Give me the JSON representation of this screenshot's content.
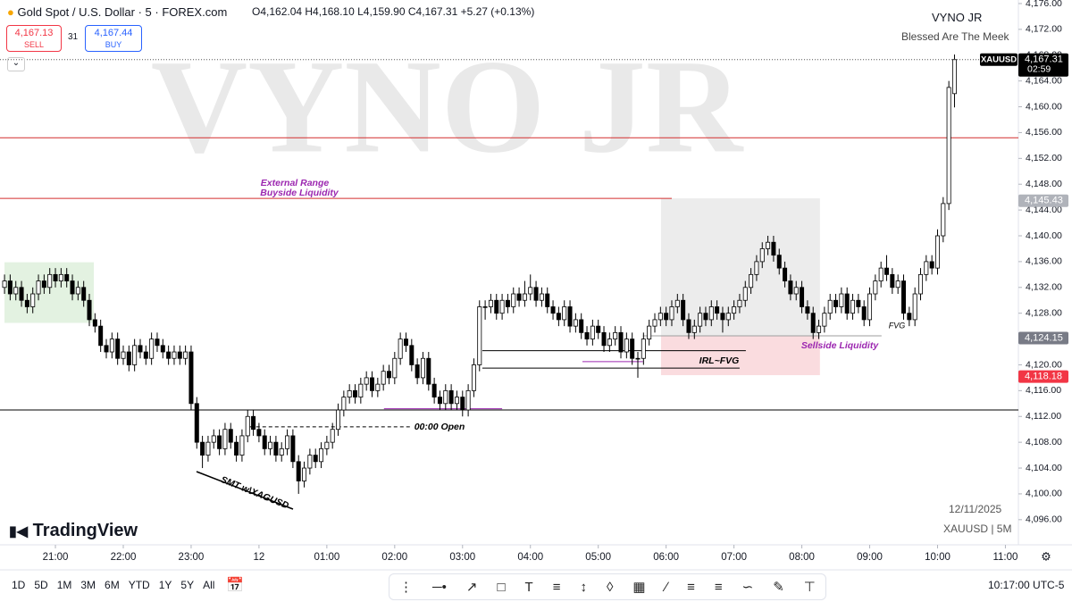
{
  "header": {
    "symbol": "Gold Spot / U.S. Dollar · 5 · FOREX.com",
    "ohlc": [
      "O4,162.04",
      "H4,168.10",
      "L4,159.90",
      "C4,167.31"
    ],
    "change": "+5.27 (+0.13%)",
    "sell": {
      "price": "4,167.13",
      "label": "SELL"
    },
    "spread": "31",
    "buy": {
      "price": "4,167.44",
      "label": "BUY"
    }
  },
  "watermark": "VYNO JR",
  "author": "VYNO JR",
  "tagline": "Blessed Are The Meek",
  "logo": "TradingView",
  "date": "12/11/2025",
  "symbol_info": "XAUUSD | 5M",
  "toolbar": {
    "ranges": [
      "1D",
      "5D",
      "1M",
      "3M",
      "6M",
      "YTD",
      "1Y",
      "5Y",
      "All"
    ],
    "clock": "10:17:00 UTC-5"
  },
  "chart_data": {
    "type": "candlestick",
    "up_color": "#ffffff",
    "down_color": "#000000",
    "xlim": [
      -0.8,
      179.3
    ],
    "ylim": [
      4092.1,
      4176.55
    ],
    "xticks": [
      {
        "value": 9,
        "label": "21:00"
      },
      {
        "value": 21,
        "label": "22:00"
      },
      {
        "value": 33,
        "label": "23:00"
      },
      {
        "value": 45,
        "label": "12"
      },
      {
        "value": 57,
        "label": "01:00"
      },
      {
        "value": 69,
        "label": "02:00"
      },
      {
        "value": 81,
        "label": "03:00"
      },
      {
        "value": 93,
        "label": "04:00"
      },
      {
        "value": 105,
        "label": "05:00"
      },
      {
        "value": 117,
        "label": "06:00"
      },
      {
        "value": 129,
        "label": "07:00"
      },
      {
        "value": 141,
        "label": "08:00"
      },
      {
        "value": 153,
        "label": "09:00"
      },
      {
        "value": 165,
        "label": "10:00"
      },
      {
        "value": 177,
        "label": "11:00"
      }
    ],
    "yticks": [
      {
        "value": 4096,
        "label": "4,096.00"
      },
      {
        "value": 4100,
        "label": "4,100.00"
      },
      {
        "value": 4104,
        "label": "4,104.00"
      },
      {
        "value": 4108,
        "label": "4,108.00"
      },
      {
        "value": 4112,
        "label": "4,112.00"
      },
      {
        "value": 4116,
        "label": "4,116.00"
      },
      {
        "value": 4120,
        "label": "4,120.00"
      },
      {
        "value": 4124,
        "label": "4,124.00"
      },
      {
        "value": 4128,
        "label": "4,128.00"
      },
      {
        "value": 4132,
        "label": "4,132.00"
      },
      {
        "value": 4136,
        "label": "4,136.00"
      },
      {
        "value": 4140,
        "label": "4,140.00"
      },
      {
        "value": 4144,
        "label": "4,144.00"
      },
      {
        "value": 4148,
        "label": "4,148.00"
      },
      {
        "value": 4152,
        "label": "4,152.00"
      },
      {
        "value": 4156,
        "label": "4,156.00"
      },
      {
        "value": 4160,
        "label": "4,160.00"
      },
      {
        "value": 4164,
        "label": "4,164.00"
      },
      {
        "value": 4168,
        "label": "4,168.00"
      },
      {
        "value": 4172,
        "label": "4,172.00"
      },
      {
        "value": 4176,
        "label": "4,176.00"
      }
    ],
    "candles": [
      [
        4132,
        4134,
        4131,
        4133
      ],
      [
        4133,
        4134,
        4130,
        4131
      ],
      [
        4131,
        4133,
        4130,
        4132
      ],
      [
        4132,
        4133,
        4129,
        4130
      ],
      [
        4130,
        4131,
        4128,
        4129
      ],
      [
        4129,
        4132,
        4128,
        4131
      ],
      [
        4131,
        4134,
        4130,
        4133
      ],
      [
        4133,
        4134,
        4131,
        4132
      ],
      [
        4132,
        4135,
        4131,
        4134
      ],
      [
        4134,
        4135,
        4132,
        4133
      ],
      [
        4133,
        4135,
        4132,
        4134
      ],
      [
        4134,
        4135,
        4132,
        4133
      ],
      [
        4133,
        4134,
        4130,
        4131
      ],
      [
        4131,
        4133,
        4130,
        4132
      ],
      [
        4132,
        4133,
        4129,
        4130
      ],
      [
        4130,
        4131,
        4126,
        4127
      ],
      [
        4127,
        4128,
        4125,
        4126
      ],
      [
        4126,
        4127,
        4122,
        4123
      ],
      [
        4123,
        4124,
        4121,
        4122
      ],
      [
        4122,
        4125,
        4121,
        4124
      ],
      [
        4124,
        4125,
        4120,
        4121
      ],
      [
        4121,
        4123,
        4120,
        4122
      ],
      [
        4122,
        4123,
        4119,
        4120
      ],
      [
        4120,
        4124,
        4119,
        4123
      ],
      [
        4123,
        4124,
        4121,
        4122
      ],
      [
        4122,
        4123,
        4120,
        4121
      ],
      [
        4121,
        4125,
        4120,
        4124
      ],
      [
        4124,
        4125,
        4122,
        4123
      ],
      [
        4123,
        4124,
        4121,
        4122
      ],
      [
        4122,
        4123,
        4120,
        4121
      ],
      [
        4121,
        4123,
        4120,
        4122
      ],
      [
        4122,
        4123,
        4120,
        4121
      ],
      [
        4121,
        4123,
        4120,
        4122
      ],
      [
        4122,
        4123,
        4113,
        4114
      ],
      [
        4114,
        4115,
        4107,
        4108
      ],
      [
        4108,
        4109,
        4104,
        4106
      ],
      [
        4106,
        4109,
        4105,
        4108
      ],
      [
        4108,
        4110,
        4107,
        4109
      ],
      [
        4109,
        4110,
        4106,
        4107
      ],
      [
        4107,
        4111,
        4106,
        4110
      ],
      [
        4110,
        4111,
        4107,
        4108
      ],
      [
        4108,
        4109,
        4105,
        4106
      ],
      [
        4106,
        4110,
        4105,
        4109
      ],
      [
        4109,
        4113,
        4108,
        4112
      ],
      [
        4112,
        4113,
        4109,
        4110
      ],
      [
        4110,
        4111,
        4108,
        4109
      ],
      [
        4109,
        4110,
        4106,
        4107
      ],
      [
        4107,
        4109,
        4106,
        4108
      ],
      [
        4108,
        4109,
        4105,
        4106
      ],
      [
        4106,
        4108,
        4105,
        4107
      ],
      [
        4107,
        4110,
        4106,
        4109
      ],
      [
        4109,
        4110,
        4104,
        4105
      ],
      [
        4105,
        4106,
        4100,
        4102
      ],
      [
        4102,
        4105,
        4101,
        4104
      ],
      [
        4104,
        4107,
        4103,
        4106
      ],
      [
        4106,
        4107,
        4104,
        4105
      ],
      [
        4105,
        4108,
        4104,
        4107
      ],
      [
        4107,
        4109,
        4106,
        4108
      ],
      [
        4108,
        4111,
        4107,
        4110
      ],
      [
        4110,
        4114,
        4109,
        4113
      ],
      [
        4113,
        4116,
        4112,
        4115
      ],
      [
        4115,
        4117,
        4114,
        4116
      ],
      [
        4116,
        4117,
        4114,
        4115
      ],
      [
        4115,
        4118,
        4114,
        4117
      ],
      [
        4117,
        4119,
        4116,
        4118
      ],
      [
        4118,
        4119,
        4115,
        4116
      ],
      [
        4116,
        4118,
        4115,
        4117
      ],
      [
        4117,
        4120,
        4116,
        4119
      ],
      [
        4119,
        4120,
        4117,
        4118
      ],
      [
        4118,
        4122,
        4117,
        4121
      ],
      [
        4121,
        4125,
        4120,
        4124
      ],
      [
        4124,
        4125,
        4122,
        4123
      ],
      [
        4123,
        4124,
        4119,
        4120
      ],
      [
        4120,
        4121,
        4117,
        4118
      ],
      [
        4118,
        4122,
        4117,
        4121
      ],
      [
        4121,
        4122,
        4116,
        4117
      ],
      [
        4117,
        4118,
        4114,
        4115
      ],
      [
        4115,
        4116,
        4113,
        4114
      ],
      [
        4114,
        4117,
        4113,
        4116
      ],
      [
        4116,
        4117,
        4113,
        4114
      ],
      [
        4114,
        4116,
        4113,
        4115
      ],
      [
        4115,
        4116,
        4112,
        4113
      ],
      [
        4113,
        4117,
        4112,
        4116
      ],
      [
        4116,
        4121,
        4115,
        4120
      ],
      [
        4120,
        4130,
        4119,
        4129
      ],
      [
        4129,
        4130,
        4127,
        4129
      ],
      [
        4129,
        4131,
        4128,
        4130
      ],
      [
        4130,
        4131,
        4127,
        4128
      ],
      [
        4128,
        4131,
        4127,
        4130
      ],
      [
        4130,
        4131,
        4128,
        4129
      ],
      [
        4129,
        4132,
        4128,
        4131
      ],
      [
        4131,
        4132,
        4129,
        4130
      ],
      [
        4130,
        4133,
        4129,
        4131
      ],
      [
        4131,
        4134,
        4130,
        4132
      ],
      [
        4132,
        4133,
        4129,
        4130
      ],
      [
        4130,
        4132,
        4129,
        4131
      ],
      [
        4131,
        4132,
        4128,
        4129
      ],
      [
        4129,
        4130,
        4127,
        4128
      ],
      [
        4128,
        4129,
        4126,
        4127
      ],
      [
        4127,
        4130,
        4126,
        4129
      ],
      [
        4129,
        4130,
        4125,
        4126
      ],
      [
        4126,
        4128,
        4125,
        4127
      ],
      [
        4127,
        4128,
        4124,
        4125
      ],
      [
        4125,
        4126,
        4123,
        4124
      ],
      [
        4124,
        4127,
        4123,
        4126
      ],
      [
        4126,
        4127,
        4124,
        4125
      ],
      [
        4125,
        4126,
        4122,
        4123
      ],
      [
        4123,
        4125,
        4122,
        4124
      ],
      [
        4124,
        4126,
        4123,
        4125
      ],
      [
        4125,
        4126,
        4121,
        4122
      ],
      [
        4122,
        4125,
        4121,
        4124
      ],
      [
        4124,
        4125,
        4120,
        4121
      ],
      [
        4121,
        4122,
        4118,
        4121
      ],
      [
        4121,
        4125,
        4120,
        4124
      ],
      [
        4124,
        4127,
        4123,
        4126
      ],
      [
        4126,
        4128,
        4125,
        4127
      ],
      [
        4127,
        4129,
        4126,
        4128
      ],
      [
        4128,
        4129,
        4126,
        4127
      ],
      [
        4127,
        4130,
        4126,
        4129
      ],
      [
        4129,
        4131,
        4128,
        4130
      ],
      [
        4130,
        4131,
        4126,
        4127
      ],
      [
        4127,
        4128,
        4124,
        4125
      ],
      [
        4125,
        4127,
        4124,
        4126
      ],
      [
        4126,
        4129,
        4125,
        4128
      ],
      [
        4128,
        4129,
        4126,
        4127
      ],
      [
        4127,
        4130,
        4126,
        4129
      ],
      [
        4129,
        4130,
        4127,
        4128
      ],
      [
        4128,
        4129,
        4125,
        4127
      ],
      [
        4127,
        4129,
        4126,
        4128
      ],
      [
        4128,
        4130,
        4127,
        4129
      ],
      [
        4129,
        4131,
        4128,
        4130
      ],
      [
        4130,
        4133,
        4129,
        4132
      ],
      [
        4132,
        4135,
        4131,
        4134
      ],
      [
        4134,
        4137,
        4133,
        4136
      ],
      [
        4136,
        4139,
        4135,
        4138
      ],
      [
        4138,
        4140,
        4137,
        4139
      ],
      [
        4139,
        4140,
        4136,
        4137
      ],
      [
        4137,
        4138,
        4134,
        4135
      ],
      [
        4135,
        4136,
        4132,
        4133
      ],
      [
        4133,
        4134,
        4130,
        4131
      ],
      [
        4131,
        4133,
        4130,
        4132
      ],
      [
        4132,
        4133,
        4128,
        4129
      ],
      [
        4129,
        4130,
        4127,
        4128
      ],
      [
        4128,
        4129,
        4124,
        4125
      ],
      [
        4125,
        4127,
        4124,
        4126
      ],
      [
        4126,
        4129,
        4125,
        4128
      ],
      [
        4128,
        4131,
        4127,
        4130
      ],
      [
        4130,
        4131,
        4128,
        4129
      ],
      [
        4129,
        4132,
        4128,
        4131
      ],
      [
        4131,
        4132,
        4127,
        4128
      ],
      [
        4128,
        4131,
        4127,
        4130
      ],
      [
        4130,
        4131,
        4128,
        4129
      ],
      [
        4129,
        4130,
        4126,
        4127
      ],
      [
        4127,
        4132,
        4126,
        4131
      ],
      [
        4131,
        4134,
        4130,
        4133
      ],
      [
        4133,
        4136,
        4132,
        4135
      ],
      [
        4135,
        4137,
        4133,
        4134
      ],
      [
        4134,
        4135,
        4131,
        4132
      ],
      [
        4132,
        4134,
        4131,
        4133
      ],
      [
        4133,
        4134,
        4127,
        4128
      ],
      [
        4128,
        4129,
        4126,
        4127
      ],
      [
        4127,
        4132,
        4126,
        4131
      ],
      [
        4131,
        4135,
        4130,
        4134
      ],
      [
        4134,
        4137,
        4133,
        4136
      ],
      [
        4136,
        4137,
        4134,
        4135
      ],
      [
        4135,
        4141,
        4134,
        4140
      ],
      [
        4140,
        4146,
        4139,
        4145
      ],
      [
        4145,
        4164,
        4144,
        4163
      ],
      [
        4162.04,
        4168.1,
        4159.9,
        4167.31
      ]
    ],
    "zones": [
      {
        "x": [
          0,
          15.8
        ],
        "y": [
          4135.9,
          4126.5
        ],
        "color": "#e3f2e1"
      },
      {
        "x": [
          116.1,
          144.2
        ],
        "y": [
          4145.8,
          4124.5
        ],
        "color": "#ececec"
      },
      {
        "x": [
          116.1,
          144.2
        ],
        "y": [
          4124.5,
          4118.4
        ],
        "color": "#fadcdf"
      }
    ],
    "levels": [
      {
        "price": 4155.2,
        "x": [
          -0.8,
          179.3
        ],
        "color": "#d32f2f",
        "dash": false
      },
      {
        "price": 4145.8,
        "x": [
          -0.8,
          118
        ],
        "color": "#d32f2f",
        "dash": false
      },
      {
        "price": 4113,
        "x": [
          -0.8,
          179.3
        ],
        "color": "#000000",
        "dash": false
      },
      {
        "price": 4110.4,
        "x": [
          43.4,
          71.9
        ],
        "color": "#000000",
        "dash": true
      },
      {
        "price": 4113.2,
        "x": [
          67.1,
          88
        ],
        "color": "#9c27b0",
        "dash": false
      },
      {
        "price": 4122.2,
        "x": [
          84.5,
          131.1
        ],
        "color": "#000000",
        "dash": false
      },
      {
        "price": 4119.5,
        "x": [
          84.5,
          130
        ],
        "color": "#000000",
        "dash": false
      },
      {
        "price": 4120.5,
        "x": [
          102.2,
          112.9
        ],
        "color": "#9c27b0",
        "dash": false
      },
      {
        "price": 4124.5,
        "x": [
          112.9,
          155.1
        ],
        "color": "#9e9e9e",
        "dash": false
      }
    ],
    "annotations": [
      "External Range",
      "Buyside Liquidity",
      "00:00 Open",
      "SMT w\\XAGUSD",
      "IRL~FVG",
      "Sellside Liquidity",
      "FVG"
    ],
    "price_labels": [
      {
        "value": 4167.31,
        "label": "4,167.31",
        "color": "#000000"
      },
      {
        "value": 4145.43,
        "label": "4,145.43",
        "color": "#b0b3ba"
      },
      {
        "value": 4124.15,
        "label": "4,124.15",
        "color": "#787b86"
      },
      {
        "value": 4118.18,
        "label": "4,118.18",
        "color": "#f23645"
      }
    ],
    "ticker": "XAUUSD",
    "countdown": "02:59"
  }
}
